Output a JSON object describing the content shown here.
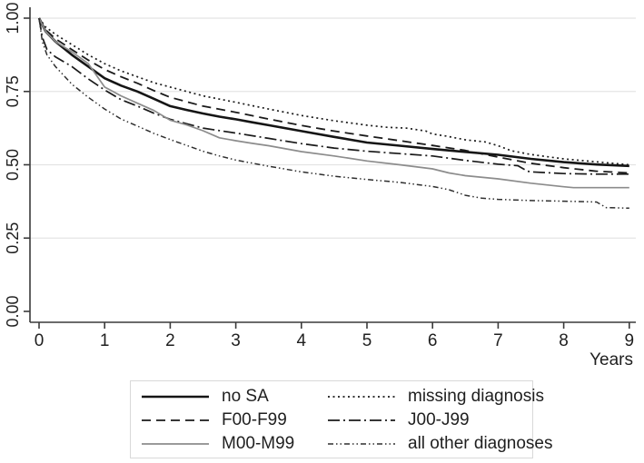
{
  "chart_data": {
    "type": "line",
    "title": "",
    "xlabel": "Years",
    "ylabel": "",
    "xlim": [
      0,
      9
    ],
    "ylim": [
      0.0,
      1.0
    ],
    "x_ticks": [
      0,
      1,
      2,
      3,
      4,
      5,
      6,
      7,
      8,
      9
    ],
    "y_ticks": [
      {
        "value": 0.0,
        "label": "0.00"
      },
      {
        "value": 0.25,
        "label": "0.25"
      },
      {
        "value": 0.5,
        "label": "0.50"
      },
      {
        "value": 0.75,
        "label": "0.75"
      },
      {
        "value": 1.0,
        "label": "1.00"
      }
    ],
    "grid": "horizontal-only",
    "legend_position": "bottom",
    "colors": {
      "axis": "#3a3a3a",
      "grid": "#e4e4e4",
      "text": "#1f1f1f",
      "black_series": "#151515",
      "gray_series": "#8c8c8c",
      "legend_border": "#d9d9d9"
    },
    "legend_order": [
      "no-sa",
      "missing-diagnosis",
      "f00-f99",
      "j00-j99",
      "m00-m99",
      "all-other-diagnoses"
    ],
    "series": [
      {
        "name": "no-sa",
        "label": "no SA",
        "color": "#151515",
        "width": 2.6,
        "dash": "",
        "x": [
          0,
          0.1,
          0.25,
          0.5,
          0.75,
          1,
          1.25,
          1.5,
          1.75,
          2,
          2.25,
          2.5,
          2.75,
          3,
          3.25,
          3.5,
          4,
          4.5,
          5,
          5.5,
          6,
          6.5,
          7,
          7.5,
          8,
          8.5,
          9
        ],
        "y": [
          1.0,
          0.955,
          0.92,
          0.875,
          0.835,
          0.795,
          0.77,
          0.75,
          0.725,
          0.7,
          0.687,
          0.675,
          0.664,
          0.655,
          0.645,
          0.635,
          0.615,
          0.595,
          0.576,
          0.565,
          0.554,
          0.544,
          0.534,
          0.52,
          0.509,
          0.501,
          0.496
        ]
      },
      {
        "name": "missing-diagnosis",
        "label": "missing diagnosis",
        "color": "#1a1a1a",
        "width": 1.7,
        "dash": "2 3.5",
        "x": [
          0,
          0.1,
          0.25,
          0.5,
          0.75,
          1,
          1.25,
          1.5,
          1.75,
          2,
          2.5,
          3,
          3.5,
          4,
          4.5,
          5,
          5.3,
          5.6,
          5.9,
          6,
          6.2,
          6.5,
          6.8,
          7,
          7.2,
          7.5,
          8,
          8.5,
          9
        ],
        "y": [
          1.0,
          0.97,
          0.945,
          0.91,
          0.875,
          0.845,
          0.82,
          0.8,
          0.78,
          0.765,
          0.735,
          0.713,
          0.69,
          0.668,
          0.65,
          0.635,
          0.628,
          0.625,
          0.615,
          0.605,
          0.598,
          0.585,
          0.578,
          0.565,
          0.548,
          0.535,
          0.52,
          0.51,
          0.5
        ]
      },
      {
        "name": "f00-f99",
        "label": "F00-F99",
        "color": "#1a1a1a",
        "width": 1.8,
        "dash": "10 6",
        "x": [
          0,
          0.1,
          0.25,
          0.5,
          0.75,
          1,
          1.25,
          1.5,
          1.75,
          2,
          2.5,
          3,
          3.5,
          4,
          4.5,
          5,
          5.5,
          6,
          6.5,
          7,
          7.5,
          8,
          8.5,
          9
        ],
        "y": [
          1.0,
          0.96,
          0.93,
          0.893,
          0.857,
          0.825,
          0.8,
          0.778,
          0.753,
          0.73,
          0.7,
          0.679,
          0.656,
          0.634,
          0.615,
          0.598,
          0.582,
          0.566,
          0.549,
          0.526,
          0.505,
          0.49,
          0.478,
          0.472
        ]
      },
      {
        "name": "j00-j99",
        "label": "J00-J99",
        "color": "#1a1a1a",
        "width": 1.7,
        "dash": "13 4 2 4",
        "x": [
          0,
          0.05,
          0.12,
          0.25,
          0.5,
          0.75,
          1,
          1.25,
          1.5,
          1.75,
          2,
          2.25,
          2.5,
          3,
          3.5,
          4,
          4.5,
          5,
          5.5,
          6,
          6.5,
          7,
          7.3,
          7.45,
          7.5,
          8,
          8.5,
          9
        ],
        "y": [
          1.0,
          0.935,
          0.893,
          0.868,
          0.835,
          0.793,
          0.755,
          0.722,
          0.7,
          0.676,
          0.655,
          0.64,
          0.625,
          0.608,
          0.59,
          0.572,
          0.557,
          0.546,
          0.538,
          0.53,
          0.515,
          0.502,
          0.497,
          0.478,
          0.476,
          0.47,
          0.468,
          0.468
        ]
      },
      {
        "name": "m00-m99",
        "label": "M00-M99",
        "color": "#8c8c8c",
        "width": 1.7,
        "dash": "",
        "x": [
          0,
          0.1,
          0.25,
          0.5,
          0.75,
          1,
          1.25,
          1.5,
          1.75,
          2,
          2.25,
          2.5,
          2.75,
          3,
          3.25,
          3.5,
          4,
          4.5,
          5,
          5.5,
          6,
          6.25,
          6.5,
          7,
          7.5,
          8,
          8.15,
          9
        ],
        "y": [
          1.0,
          0.955,
          0.92,
          0.885,
          0.845,
          0.765,
          0.735,
          0.71,
          0.685,
          0.652,
          0.636,
          0.616,
          0.592,
          0.582,
          0.573,
          0.565,
          0.545,
          0.53,
          0.513,
          0.5,
          0.486,
          0.472,
          0.463,
          0.452,
          0.437,
          0.425,
          0.422,
          0.422
        ]
      },
      {
        "name": "all-other-diagnoses",
        "label": "all other diagnoses",
        "color": "#2e2e2e",
        "width": 1.5,
        "dash": "6 3 1.5 3 1.5 3",
        "x": [
          0,
          0.05,
          0.12,
          0.25,
          0.5,
          0.75,
          1,
          1.25,
          1.5,
          1.75,
          2,
          2.25,
          2.5,
          2.75,
          3,
          3.5,
          4,
          4.5,
          5,
          5.5,
          6,
          6.25,
          6.5,
          6.75,
          7,
          7.5,
          8,
          8.5,
          8.65,
          9
        ],
        "y": [
          1.0,
          0.92,
          0.875,
          0.835,
          0.775,
          0.73,
          0.69,
          0.656,
          0.632,
          0.607,
          0.586,
          0.566,
          0.546,
          0.53,
          0.516,
          0.495,
          0.476,
          0.461,
          0.45,
          0.44,
          0.426,
          0.415,
          0.396,
          0.386,
          0.382,
          0.378,
          0.376,
          0.373,
          0.354,
          0.352
        ]
      }
    ]
  }
}
